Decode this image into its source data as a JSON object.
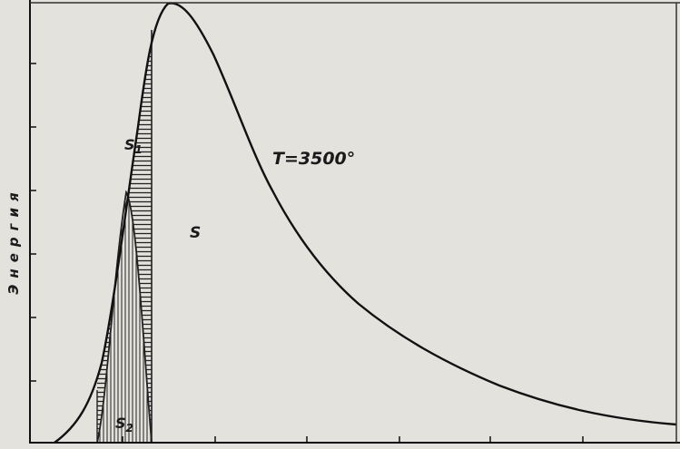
{
  "axis_label": "Энергия",
  "curve_label": "T=3500°",
  "region_total": "S",
  "region_visible": {
    "letter": "S",
    "index": "1"
  },
  "region_eye": {
    "letter": "S",
    "index": "2"
  }
}
